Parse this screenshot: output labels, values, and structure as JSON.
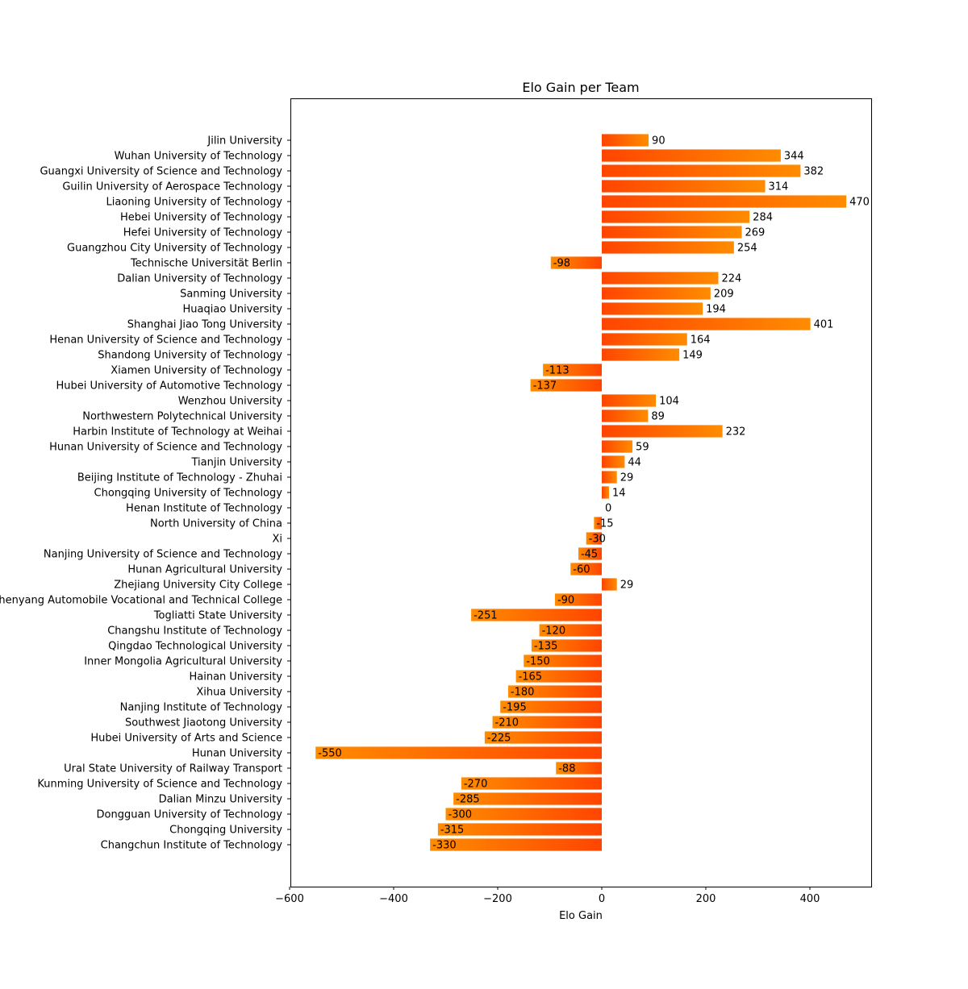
{
  "chart_data": {
    "type": "bar",
    "orientation": "horizontal",
    "title": "Elo Gain per Team",
    "xlabel": "Elo Gain",
    "ylabel": "",
    "xlim": [
      -600,
      520
    ],
    "xticks": [
      -600,
      -400,
      -200,
      0,
      200,
      400
    ],
    "xtick_labels": [
      "−600",
      "−400",
      "−200",
      "0",
      "200",
      "400"
    ],
    "grid": false,
    "categories": [
      "Jilin University",
      "Wuhan University of Technology",
      "Guangxi University of Science and Technology",
      "Guilin University of Aerospace Technology",
      "Liaoning University of Technology",
      "Hebei University of Technology",
      "Hefei University of Technology",
      "Guangzhou City University of Technology",
      "Technische Universität Berlin",
      "Dalian University of Technology",
      "Sanming University",
      "Huaqiao University",
      "Shanghai Jiao Tong University",
      "Henan University of Science and Technology",
      "Shandong University of Technology",
      "Xiamen University of Technology",
      "Hubei University of Automotive Technology",
      "Wenzhou University",
      "Northwestern Polytechnical University",
      "Harbin Institute of Technology at Weihai",
      "Hunan University of Science and Technology",
      "Tianjin University",
      "Beijing Institute of Technology - Zhuhai",
      "Chongqing University of Technology",
      "Henan Institute of Technology",
      "North University of China",
      "Xi",
      "Nanjing University of Science and Technology",
      "Hunan Agricultural University",
      "Zhejiang University City College",
      "Shenyang Automobile Vocational and Technical College",
      "Togliatti State University",
      "Changshu Institute of Technology",
      "Qingdao Technological University",
      "Inner Mongolia Agricultural University",
      "Hainan University",
      "Xihua University",
      "Nanjing Institute of Technology",
      "Southwest Jiaotong University",
      "Hubei University of Arts and Science",
      "Hunan University",
      "Ural State University of Railway Transport",
      "Kunming University of Science and Technology",
      "Dalian Minzu University",
      "Dongguan University of Technology",
      "Chongqing University",
      "Changchun Institute of Technology"
    ],
    "values": [
      90,
      344,
      382,
      314,
      470,
      284,
      269,
      254,
      -98,
      224,
      209,
      194,
      401,
      164,
      149,
      -113,
      -137,
      104,
      89,
      232,
      59,
      44,
      29,
      14,
      0,
      -15,
      -30,
      -45,
      -60,
      29,
      -90,
      -251,
      -120,
      -135,
      -150,
      -165,
      -180,
      -195,
      -210,
      -225,
      -550,
      -88,
      -270,
      -285,
      -300,
      -315,
      -330
    ],
    "value_labels": [
      "90",
      "344",
      "382",
      "314",
      "470",
      "284",
      "269",
      "254",
      "-98",
      "224",
      "209",
      "194",
      "401",
      "164",
      "149",
      "-113",
      "-137",
      "104",
      "89",
      "232",
      "59",
      "44",
      "29",
      "14",
      "0",
      "-15",
      "-30",
      "-45",
      "-60",
      "29",
      "-90",
      "-251",
      "-120",
      "-135",
      "-150",
      "-165",
      "-180",
      "-195",
      "-210",
      "-225",
      "-550",
      "-88",
      "-270",
      "-285",
      "-300",
      "-315",
      "-330"
    ],
    "colors": {
      "gradient_zero_end": "#ff4500",
      "gradient_far_end": "#ff8c00",
      "axis": "#000000",
      "text": "#000000",
      "background": "#ffffff"
    }
  }
}
